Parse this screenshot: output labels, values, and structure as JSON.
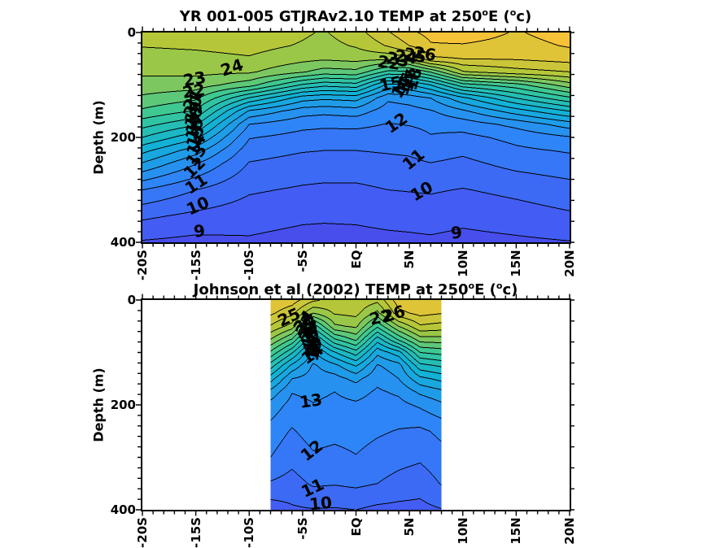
{
  "background": "#FFFFFF",
  "frame_color": "#000000",
  "contour_line_color": "#000000",
  "palette": {
    "domain": [
      5,
      35
    ],
    "stops": [
      {
        "t": 0.0,
        "c": "#3E26A8"
      },
      {
        "t": 0.127,
        "c": "#4852F2"
      },
      {
        "t": 0.254,
        "c": "#2D87F7"
      },
      {
        "t": 0.381,
        "c": "#11B1D6"
      },
      {
        "t": 0.508,
        "c": "#37C897"
      },
      {
        "t": 0.635,
        "c": "#ABC739"
      },
      {
        "t": 0.762,
        "c": "#FEC338"
      },
      {
        "t": 0.889,
        "c": "#F9FB14"
      },
      {
        "t": 1.0,
        "c": "#F9FB14"
      }
    ]
  },
  "chart_data": [
    {
      "type": "heatmap",
      "name": "model-temp-section",
      "title": {
        "pre": "YR 001-005 GTJRAv2.10 TEMP at 250",
        "sup1": "o",
        "mid": "E (",
        "sup2": "o",
        "post": "c)"
      },
      "ylabel": "Depth (m)",
      "xlim": [
        -20,
        20
      ],
      "ylim": [
        0,
        400
      ],
      "data_extent": [
        -20,
        20
      ],
      "contour_interval": 1,
      "xticks": {
        "values": [
          -20,
          -15,
          -10,
          -5,
          0,
          5,
          10,
          15,
          20
        ],
        "labels": [
          "-20S",
          "-15S",
          "-10S",
          "-5S",
          "EQ",
          "5N",
          "10N",
          "15N",
          "20N"
        ],
        "minor_step": 1
      },
      "yticks": {
        "values": [
          0,
          200,
          400
        ],
        "labels": [
          "0",
          "200",
          "400"
        ],
        "minor_step": 20
      },
      "contour_labels": [
        {
          "t": "24",
          "lat": -11.6,
          "z": 66,
          "r": -18
        },
        {
          "t": "23",
          "lat": -15.1,
          "z": 88,
          "r": -10
        },
        {
          "t": "22",
          "lat": -15.2,
          "z": 112,
          "r": -8
        },
        {
          "t": "21",
          "lat": -15.3,
          "z": 128,
          "r": -58
        },
        {
          "t": "20",
          "lat": -15.25,
          "z": 141,
          "r": -62
        },
        {
          "t": "19",
          "lat": -15.2,
          "z": 152,
          "r": -64
        },
        {
          "t": "18",
          "lat": -15.2,
          "z": 162,
          "r": -66
        },
        {
          "t": "17",
          "lat": -15.15,
          "z": 173,
          "r": -68
        },
        {
          "t": "16",
          "lat": -15.1,
          "z": 185,
          "r": -68
        },
        {
          "t": "15",
          "lat": -15.05,
          "z": 198,
          "r": -68
        },
        {
          "t": "14",
          "lat": -15.0,
          "z": 214,
          "r": -62
        },
        {
          "t": "13",
          "lat": -14.95,
          "z": 234,
          "r": -55
        },
        {
          "t": "12",
          "lat": -15.1,
          "z": 258,
          "r": -45
        },
        {
          "t": "11",
          "lat": -15.0,
          "z": 288,
          "r": -33
        },
        {
          "t": "10",
          "lat": -14.8,
          "z": 330,
          "r": -24
        },
        {
          "t": "9",
          "lat": -14.7,
          "z": 378,
          "r": -8
        },
        {
          "t": "22",
          "lat": 3.1,
          "z": 57,
          "r": 8
        },
        {
          "t": "23",
          "lat": 3.9,
          "z": 51,
          "r": 12
        },
        {
          "t": "24",
          "lat": 4.7,
          "z": 47,
          "r": 8
        },
        {
          "t": "25",
          "lat": 5.5,
          "z": 44,
          "r": 12
        },
        {
          "t": "26",
          "lat": 6.4,
          "z": 41,
          "r": 8
        },
        {
          "t": "15",
          "lat": 3.2,
          "z": 97,
          "r": -12
        },
        {
          "t": "14",
          "lat": 4.2,
          "z": 104,
          "r": -60
        },
        {
          "t": "16",
          "lat": 4.6,
          "z": 97,
          "r": -72
        },
        {
          "t": "17",
          "lat": 5.0,
          "z": 92,
          "r": -74
        },
        {
          "t": "18",
          "lat": 5.4,
          "z": 88,
          "r": -74
        },
        {
          "t": "12",
          "lat": 3.8,
          "z": 172,
          "r": -35
        },
        {
          "t": "11",
          "lat": 5.4,
          "z": 242,
          "r": -40
        },
        {
          "t": "10",
          "lat": 6.1,
          "z": 303,
          "r": -30
        },
        {
          "t": "9",
          "lat": 9.4,
          "z": 381,
          "r": -6
        }
      ],
      "field": {
        "lats": [
          -20,
          -15,
          -10,
          -5,
          -3,
          0,
          3,
          5,
          7,
          10,
          15,
          20
        ],
        "depths": [
          0,
          25,
          50,
          75,
          100,
          125,
          150,
          175,
          200,
          225,
          250,
          300,
          350,
          400
        ],
        "temps": [
          [
            24.3,
            24.05,
            23.6,
            23.2,
            22.6,
            21.8,
            20.8,
            19.4,
            18.0,
            16.3,
            14.9,
            12.0,
            10.2,
            8.9
          ],
          [
            24.4,
            24.15,
            23.7,
            23.25,
            22.5,
            21.2,
            19.9,
            18.15,
            16.25,
            14.45,
            13.05,
            11.0,
            9.75,
            8.7
          ],
          [
            24.7,
            24.35,
            23.9,
            23.15,
            21.4,
            17.9,
            14.85,
            13.0,
            12.07,
            11.45,
            10.93,
            10.13,
            9.45,
            8.85
          ],
          [
            24.15,
            23.9,
            23.3,
            22.1,
            18.85,
            15.45,
            13.45,
            12.3,
            11.63,
            11.07,
            10.6,
            9.87,
            9.2,
            8.6
          ],
          [
            23.9,
            23.65,
            23.15,
            21.55,
            18.3,
            15.2,
            13.3,
            12.2,
            11.56,
            11.0,
            10.55,
            9.8,
            9.17,
            8.55
          ],
          [
            24.6,
            24.1,
            23.35,
            21.7,
            18.6,
            15.4,
            13.5,
            12.25,
            11.55,
            11.0,
            10.55,
            9.8,
            9.2,
            8.6
          ],
          [
            25.9,
            25.1,
            23.2,
            19.7,
            15.7,
            13.2,
            12.45,
            11.95,
            11.5,
            11.1,
            10.7,
            10.0,
            9.35,
            8.7
          ],
          [
            26.8,
            26.0,
            23.7,
            19.8,
            15.85,
            13.45,
            12.6,
            12.05,
            11.6,
            11.15,
            10.8,
            10.05,
            9.4,
            8.75
          ],
          [
            27.3,
            26.9,
            25.8,
            21.1,
            17.0,
            14.0,
            12.9,
            12.2,
            11.94,
            11.43,
            10.97,
            10.1,
            9.5,
            8.8
          ],
          [
            27.6,
            26.9,
            26.0,
            23.9,
            19.55,
            15.75,
            13.8,
            12.45,
            11.7,
            11.2,
            10.75,
            9.95,
            9.3,
            8.65
          ],
          [
            26.9,
            26.6,
            26.1,
            24.6,
            20.6,
            18.0,
            15.5,
            13.3,
            12.3,
            11.8,
            11.3,
            10.25,
            9.55,
            8.8
          ],
          [
            27.5,
            27.1,
            26.4,
            25.0,
            22.55,
            19.8,
            17.0,
            14.5,
            12.9,
            12.1,
            11.6,
            10.6,
            9.85,
            8.95
          ]
        ]
      }
    },
    {
      "type": "heatmap",
      "name": "johnson-temp-section",
      "title": {
        "pre": "Johnson et al (2002) TEMP at 250",
        "sup1": "o",
        "mid": "E (",
        "sup2": "o",
        "post": "c)"
      },
      "ylabel": "Depth (m)",
      "xlim": [
        -20,
        20
      ],
      "ylim": [
        0,
        400
      ],
      "data_extent": [
        -8,
        8
      ],
      "contour_interval": 1,
      "xticks": {
        "values": [
          -20,
          -15,
          -10,
          -5,
          0,
          5,
          10,
          15,
          20
        ],
        "labels": [
          "-20S",
          "-15S",
          "-10S",
          "-5S",
          "EQ",
          "5N",
          "10N",
          "15N",
          "20N"
        ],
        "minor_step": 1
      },
      "yticks": {
        "values": [
          0,
          200,
          400
        ],
        "labels": [
          "0",
          "200",
          "400"
        ],
        "minor_step": 20
      },
      "contour_labels": [
        {
          "t": "25",
          "lat": -6.3,
          "z": 32,
          "r": -25
        },
        {
          "t": "24",
          "lat": -4.9,
          "z": 40,
          "r": -55
        },
        {
          "t": "23",
          "lat": -4.75,
          "z": 46,
          "r": -62
        },
        {
          "t": "22",
          "lat": -4.6,
          "z": 52,
          "r": -68
        },
        {
          "t": "21",
          "lat": -4.5,
          "z": 58,
          "r": -72
        },
        {
          "t": "20",
          "lat": -4.4,
          "z": 64,
          "r": -74
        },
        {
          "t": "19",
          "lat": -4.3,
          "z": 70,
          "r": -76
        },
        {
          "t": "18",
          "lat": -4.2,
          "z": 77,
          "r": -77
        },
        {
          "t": "17",
          "lat": -4.1,
          "z": 84,
          "r": -78
        },
        {
          "t": "16",
          "lat": -4.0,
          "z": 90,
          "r": -79
        },
        {
          "t": "15",
          "lat": -3.95,
          "z": 95,
          "r": -79
        },
        {
          "t": "14",
          "lat": -4.1,
          "z": 103,
          "r": -35
        },
        {
          "t": "22",
          "lat": 2.3,
          "z": 32,
          "r": -12
        },
        {
          "t": "26",
          "lat": 3.55,
          "z": 27,
          "r": -18
        },
        {
          "t": "13",
          "lat": -4.2,
          "z": 193,
          "r": -8
        },
        {
          "t": "12",
          "lat": -4.15,
          "z": 287,
          "r": -38
        },
        {
          "t": "11",
          "lat": -4.05,
          "z": 358,
          "r": -25
        },
        {
          "t": "10",
          "lat": -3.35,
          "z": 388,
          "r": -6
        }
      ],
      "field": {
        "lats": [
          -8,
          -6,
          -4,
          -2,
          0,
          2,
          4,
          6,
          8
        ],
        "depths": [
          0,
          25,
          50,
          75,
          100,
          125,
          150,
          175,
          200,
          225,
          250,
          300,
          350,
          400
        ],
        "temps": [
          [
            26.9,
            26.2,
            24.9,
            23.0,
            20.8,
            18.5,
            16.45,
            14.7,
            13.6,
            13.1,
            12.57,
            12.0,
            10.89,
            9.43
          ],
          [
            26.5,
            25.3,
            23.55,
            20.9,
            18.15,
            15.75,
            14.0,
            13.05,
            12.65,
            12.28,
            11.9,
            11.33,
            10.6,
            9.85
          ],
          [
            25.2,
            23.0,
            19.3,
            16.6,
            14.75,
            13.84,
            13.54,
            13.24,
            12.95,
            12.69,
            12.42,
            11.86,
            11.14,
            9.95
          ],
          [
            24.6,
            24.1,
            22.8,
            19.9,
            16.9,
            14.7,
            13.6,
            13.0,
            12.76,
            12.53,
            12.3,
            11.7,
            11.07,
            9.9
          ],
          [
            24.8,
            24.3,
            23.2,
            21.25,
            18.55,
            16.1,
            14.3,
            13.35,
            12.86,
            12.63,
            12.4,
            11.95,
            11.2,
            10.0
          ],
          [
            24.3,
            22.7,
            20.2,
            17.45,
            15.3,
            13.9,
            13.25,
            12.86,
            12.62,
            12.38,
            12.14,
            11.6,
            11.0,
            9.75
          ],
          [
            26.6,
            25.7,
            23.0,
            20.2,
            16.6,
            14.6,
            14.0,
            13.17,
            12.69,
            12.31,
            11.94,
            11.35,
            10.64,
            9.7
          ],
          [
            26.9,
            26.3,
            24.85,
            22.5,
            20.0,
            17.65,
            15.7,
            14.22,
            13.17,
            12.48,
            11.8,
            11.16,
            10.4,
            9.7
          ],
          [
            26.6,
            26.05,
            24.6,
            22.58,
            20.36,
            18.17,
            16.3,
            14.75,
            13.8,
            13.02,
            12.24,
            11.65,
            11.06,
            9.95
          ]
        ]
      }
    }
  ]
}
